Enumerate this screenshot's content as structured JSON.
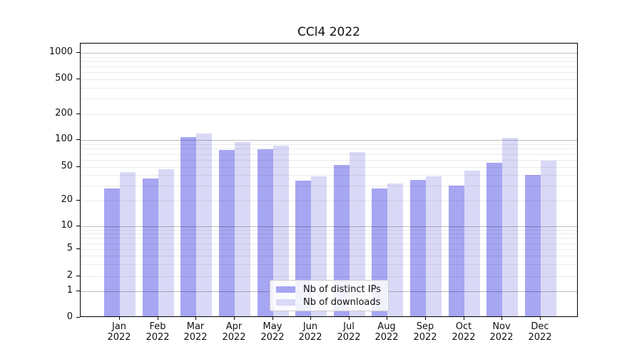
{
  "title": "CCl4 2022",
  "chart_data": {
    "type": "bar",
    "title": "CCl4 2022",
    "categories": [
      "Jan",
      "Feb",
      "Mar",
      "Apr",
      "May",
      "Jun",
      "Jul",
      "Aug",
      "Sep",
      "Oct",
      "Nov",
      "Dec"
    ],
    "x_year_suffix": "2022",
    "series": [
      {
        "name": "Nb of distinct IPs",
        "color": "#a6a6f2",
        "values": [
          27,
          35,
          103,
          75,
          76,
          33,
          51,
          27,
          34,
          29,
          54,
          39
        ]
      },
      {
        "name": "Nb of downloads",
        "color": "#d9d9f7",
        "values": [
          42,
          45,
          114,
          92,
          84,
          37,
          71,
          31,
          37,
          44,
          101,
          57
        ]
      }
    ],
    "yscale": "symlog",
    "yticks": [
      0,
      1,
      2,
      5,
      10,
      20,
      50,
      100,
      200,
      500,
      1000
    ],
    "major_gridlines": [
      1,
      10,
      100,
      1000
    ],
    "ylim": [
      0,
      1000
    ],
    "grid": true,
    "legend_position": "lower center",
    "xlabel": "",
    "ylabel": ""
  }
}
